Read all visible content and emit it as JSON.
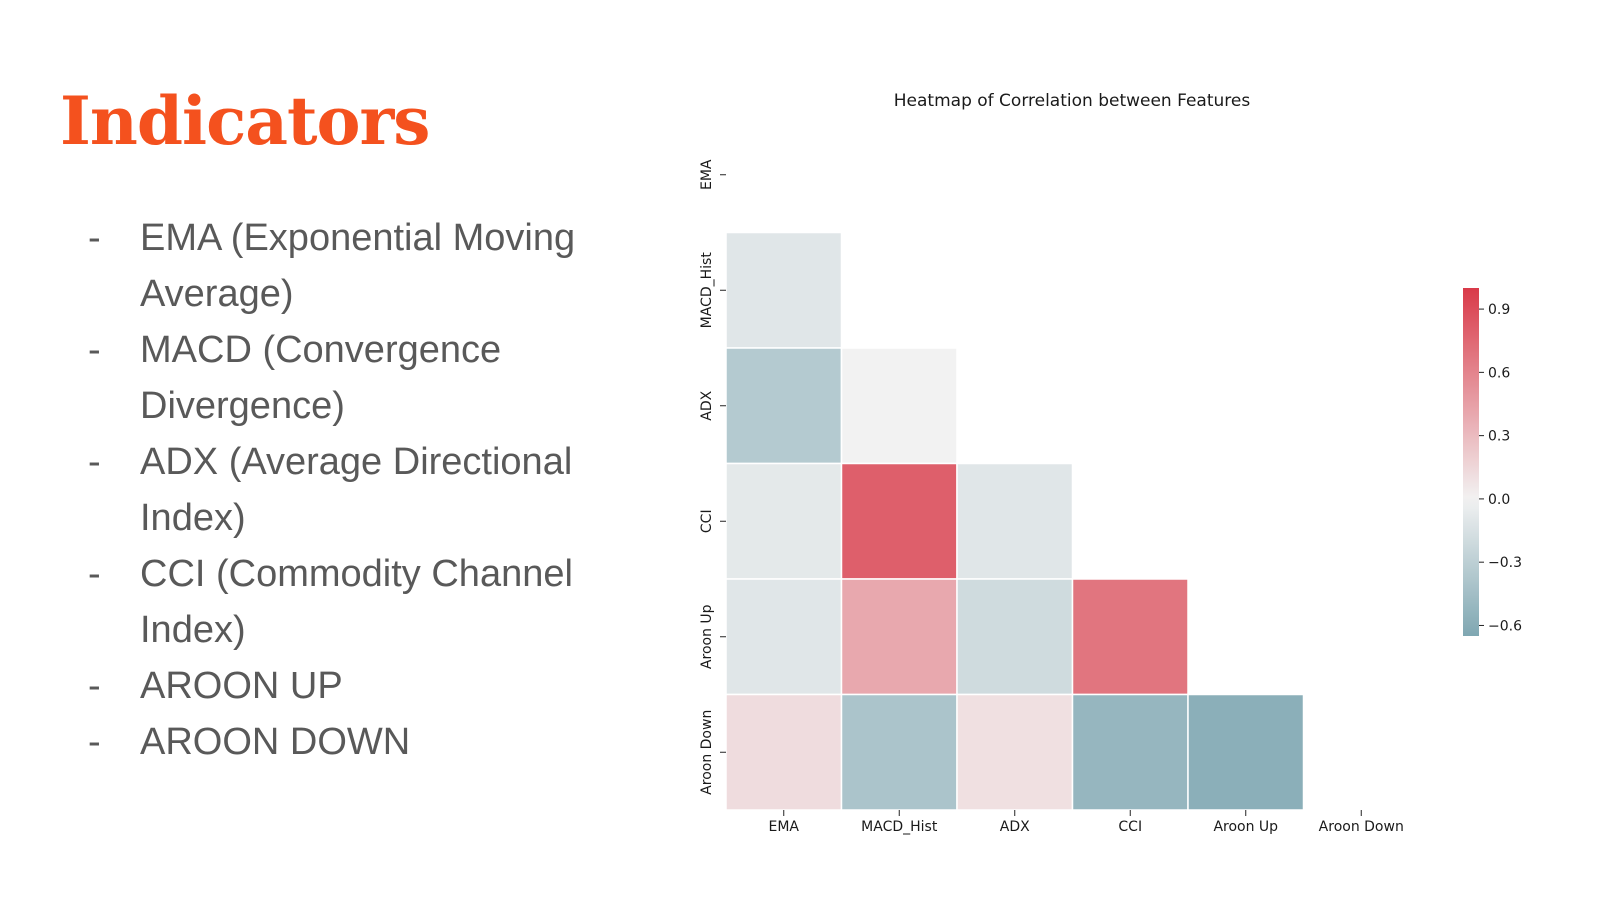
{
  "slide": {
    "title": "Indicators",
    "bullet_marker": "-",
    "bullets": [
      "EMA (Exponential Moving Average)",
      "MACD (Convergence Divergence)",
      "ADX (Average Directional Index)",
      "CCI (Commodity Channel Index)",
      "AROON UP",
      "AROON DOWN"
    ]
  },
  "chart_data": {
    "type": "heatmap",
    "title": "Heatmap of Correlation between Features",
    "variables": [
      "EMA",
      "MACD_Hist",
      "ADX",
      "CCI",
      "Aroon Up",
      "Aroon Down"
    ],
    "mask": "upper-triangle including diagonal",
    "cells": [
      {
        "row": "MACD_Hist",
        "col": "EMA",
        "value": -0.1
      },
      {
        "row": "ADX",
        "col": "EMA",
        "value": -0.35
      },
      {
        "row": "ADX",
        "col": "MACD_Hist",
        "value": 0.0
      },
      {
        "row": "CCI",
        "col": "EMA",
        "value": -0.08
      },
      {
        "row": "CCI",
        "col": "MACD_Hist",
        "value": 0.8
      },
      {
        "row": "CCI",
        "col": "ADX",
        "value": -0.1
      },
      {
        "row": "Aroon Up",
        "col": "EMA",
        "value": -0.1
      },
      {
        "row": "Aroon Up",
        "col": "MACD_Hist",
        "value": 0.4
      },
      {
        "row": "Aroon Up",
        "col": "ADX",
        "value": -0.2
      },
      {
        "row": "Aroon Up",
        "col": "CCI",
        "value": 0.68
      },
      {
        "row": "Aroon Down",
        "col": "EMA",
        "value": 0.12
      },
      {
        "row": "Aroon Down",
        "col": "MACD_Hist",
        "value": -0.4
      },
      {
        "row": "Aroon Down",
        "col": "ADX",
        "value": 0.1
      },
      {
        "row": "Aroon Down",
        "col": "CCI",
        "value": -0.52
      },
      {
        "row": "Aroon Down",
        "col": "Aroon Up",
        "value": -0.58
      }
    ],
    "colorbar": {
      "range": [
        -0.65,
        1.0
      ],
      "ticks": [
        0.9,
        0.6,
        0.3,
        0.0,
        -0.3,
        -0.6
      ],
      "tick_labels": [
        "0.9",
        "0.6",
        "0.3",
        "0.0",
        "−0.3",
        "−0.6"
      ],
      "placement": "right"
    },
    "colormap": {
      "negative": "#7fa7b2",
      "center": "#f2f2f2",
      "positive": "#d93a49"
    }
  }
}
